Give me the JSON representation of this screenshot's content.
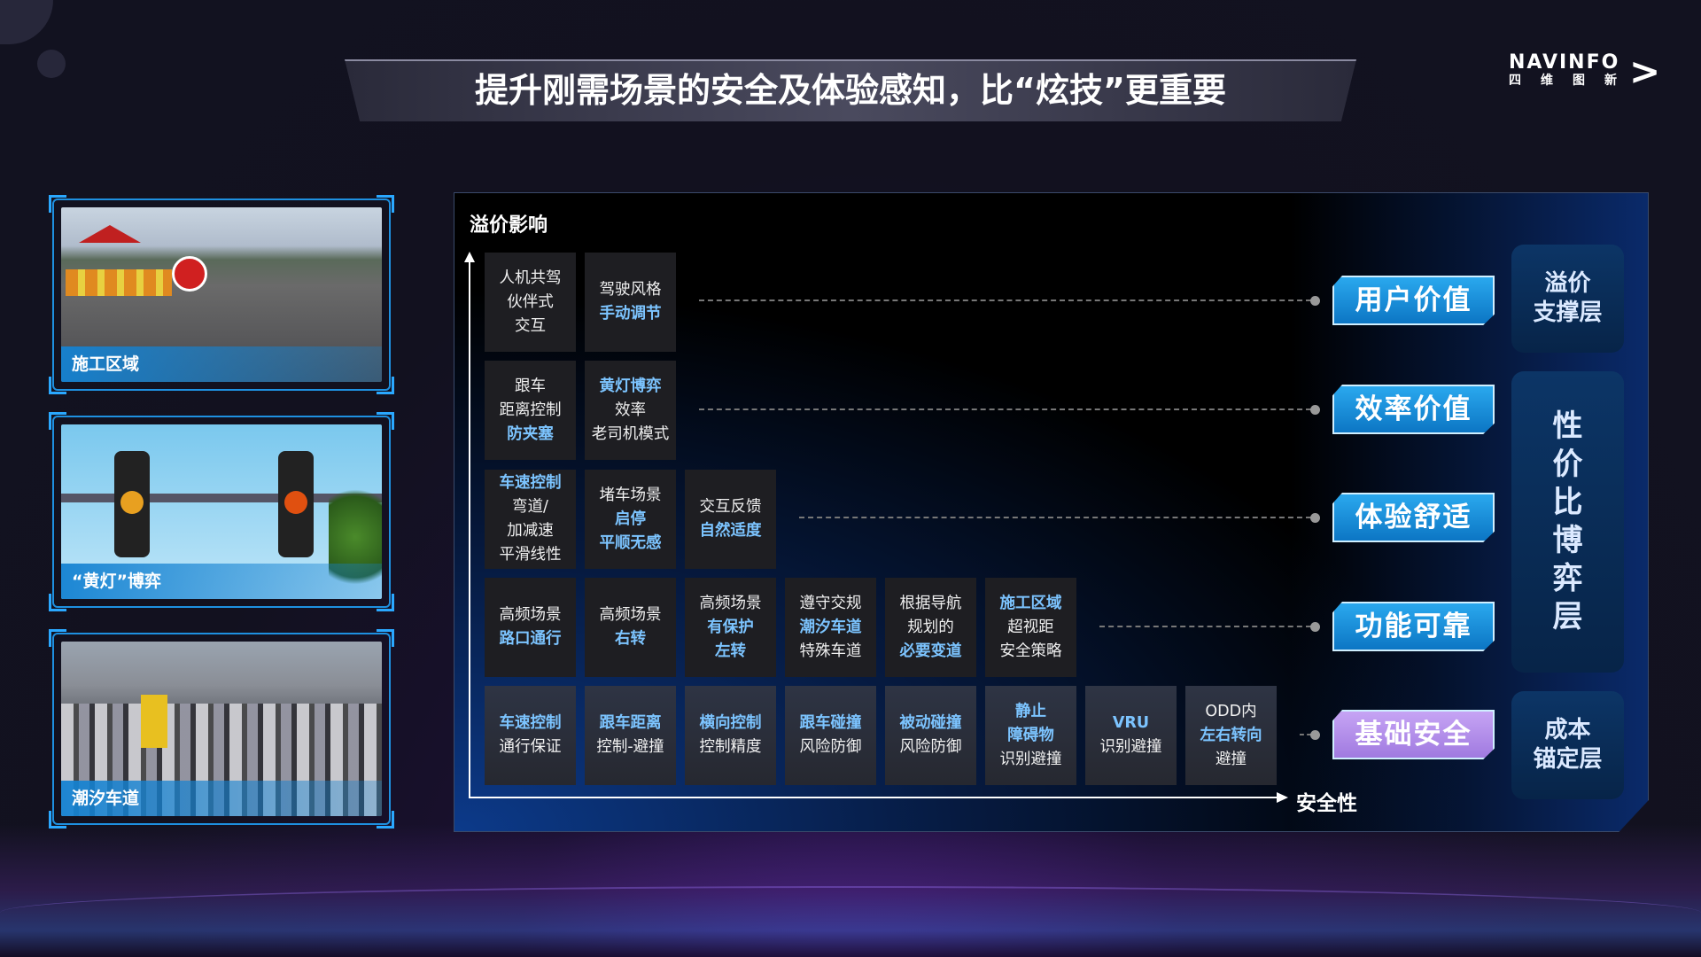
{
  "title": "提升刚需场景的安全及体验感知，比“炫技”更重要",
  "logo": {
    "en": "NAVINFO",
    "cn": "四维图新"
  },
  "photos": [
    {
      "caption": "施工区域"
    },
    {
      "caption": "“黄灯”博弈"
    },
    {
      "caption": "潮汐车道"
    }
  ],
  "chart": {
    "y_label": "溢价影响",
    "x_label": "安全性",
    "rows": [
      {
        "tag": "用户价值",
        "cells": [
          [
            {
              "t": "人机共驾"
            },
            {
              "t": "伙伴式"
            },
            {
              "t": "交互"
            }
          ],
          [
            {
              "t": "驾驶风格"
            },
            {
              "t": "手动调节",
              "hl": true
            }
          ]
        ]
      },
      {
        "tag": "效率价值",
        "cells": [
          [
            {
              "t": "跟车"
            },
            {
              "t": "距离控制"
            },
            {
              "t": "防夹塞",
              "hl": true
            }
          ],
          [
            {
              "t": "黄灯博弈",
              "hl": true
            },
            {
              "t": "效率"
            },
            {
              "t": "老司机模式"
            }
          ]
        ]
      },
      {
        "tag": "体验舒适",
        "cells": [
          [
            {
              "t": "车速控制",
              "hl": true
            },
            {
              "t": "弯道/"
            },
            {
              "t": "加减速"
            },
            {
              "t": "平滑线性"
            }
          ],
          [
            {
              "t": "堵车场景"
            },
            {
              "t": "启停",
              "hl": true
            },
            {
              "t": "平顺无感",
              "hl": true
            }
          ],
          [
            {
              "t": "交互反馈"
            },
            {
              "t": "自然适度",
              "hl": true
            }
          ]
        ]
      },
      {
        "tag": "功能可靠",
        "cells": [
          [
            {
              "t": "高频场景"
            },
            {
              "t": "路口通行",
              "hl": true
            }
          ],
          [
            {
              "t": "高频场景"
            },
            {
              "t": "右转",
              "hl": true
            }
          ],
          [
            {
              "t": "高频场景"
            },
            {
              "t": "有保护",
              "hl": true
            },
            {
              "t": "左转",
              "hl": true
            }
          ],
          [
            {
              "t": "遵守交规"
            },
            {
              "t": "潮汐车道",
              "hl": true
            },
            {
              "t": "特殊车道"
            }
          ],
          [
            {
              "t": "根据导航"
            },
            {
              "t": "规划的"
            },
            {
              "t": "必要变道",
              "hl": true
            }
          ],
          [
            {
              "t": "施工区域",
              "hl": true
            },
            {
              "t": "超视距"
            },
            {
              "t": "安全策略"
            }
          ]
        ]
      },
      {
        "tag": "基础安全",
        "cells": [
          [
            {
              "t": "车速控制",
              "hl": true
            },
            {
              "t": "通行保证"
            }
          ],
          [
            {
              "t": "跟车距离",
              "hl": true
            },
            {
              "t": "控制-避撞"
            }
          ],
          [
            {
              "t": "横向控制",
              "hl": true
            },
            {
              "t": "控制精度"
            }
          ],
          [
            {
              "t": "跟车碰撞",
              "hl": true
            },
            {
              "t": "风险防御"
            }
          ],
          [
            {
              "t": "被动碰撞",
              "hl": true
            },
            {
              "t": "风险防御"
            }
          ],
          [
            {
              "t": "静止",
              "hl": true
            },
            {
              "t": "障碍物",
              "hl": true
            },
            {
              "t": "识别避撞"
            }
          ],
          [
            {
              "t": "VRU",
              "hl": true
            },
            {
              "t": "识别避撞"
            }
          ],
          [
            {
              "t": "ODD内"
            },
            {
              "t": "左右转向",
              "hl": true
            },
            {
              "t": "避撞"
            }
          ]
        ]
      }
    ],
    "layers": [
      {
        "label": "溢价支撑层",
        "lines": [
          "溢价",
          "支撑层"
        ]
      },
      {
        "label": "性价比博弈层",
        "lines": [
          "性",
          "价",
          "比",
          "博",
          "弈",
          "层"
        ]
      },
      {
        "label": "成本锚定层",
        "lines": [
          "成本",
          "锚定层"
        ]
      }
    ]
  },
  "colors": {
    "accent_blue": "#1a8fd8",
    "highlight_text": "#7cc4ff",
    "base_tag": "#b592ec"
  }
}
